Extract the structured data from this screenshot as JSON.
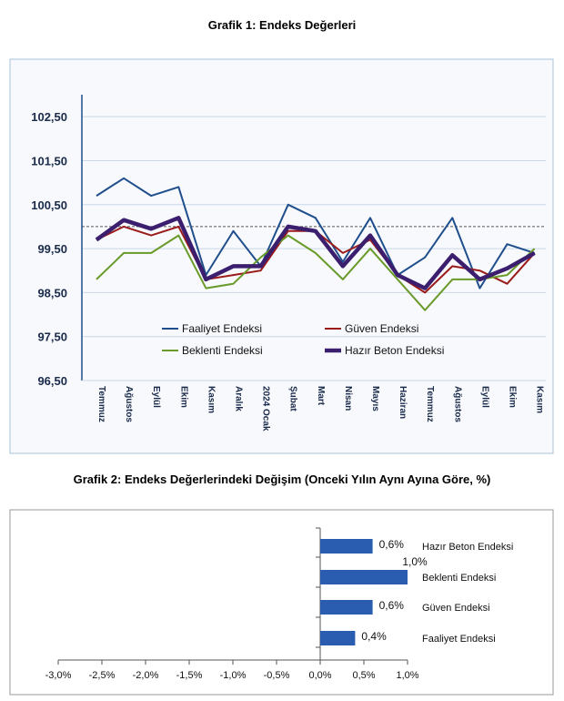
{
  "chart1": {
    "title": "Grafik 1: Endeks Değerleri",
    "colors": {
      "Faaliyet Endeksi": "#1f4e8c",
      "Güven Endeksi": "#9b1b1b",
      "Beklenti Endeksi": "#6a9a2a",
      "Hazır Beton Endeksi": "#3b1f6e",
      "panel_bg": "#f7f9fc",
      "panel_border": "#aac4dc",
      "grid": "#c8d8e8",
      "axis": "#1f4e8c"
    }
  },
  "chart2": {
    "title": "Grafik 2: Endeks Değerlerindeki Değişim (Onceki Yılın Aynı Ayına Göre, %)",
    "bar_color": "#2a5db0"
  },
  "chart_data": [
    {
      "type": "line",
      "title": "Grafik 1: Endeks Değerleri",
      "categories": [
        "Temmuz",
        "Ağustos",
        "Eylül",
        "Ekim",
        "Kasım",
        "Aralık",
        "2024 Ocak",
        "Şubat",
        "Mart",
        "Nisan",
        "Mayıs",
        "Haziran",
        "Temmuz",
        "Ağustos",
        "Eylül",
        "Ekim",
        "Kasım"
      ],
      "ylim": [
        96.5,
        103.0
      ],
      "yticks": [
        "96,50",
        "97,50",
        "98,50",
        "99,50",
        "100,50",
        "101,50",
        "102,50"
      ],
      "ytick_values": [
        96.5,
        97.5,
        98.5,
        99.5,
        100.5,
        101.5,
        102.5
      ],
      "reference_line": 100,
      "grid": true,
      "legend_position": "inside-bottom",
      "series": [
        {
          "name": "Faaliyet Endeksi",
          "values": [
            100.7,
            101.1,
            100.7,
            100.9,
            98.9,
            99.9,
            99.1,
            100.5,
            100.2,
            99.2,
            100.2,
            98.9,
            99.3,
            100.2,
            98.6,
            99.6,
            99.4
          ]
        },
        {
          "name": "Güven Endeksi",
          "values": [
            99.7,
            100.0,
            99.8,
            100.0,
            98.8,
            98.9,
            99.0,
            99.9,
            99.9,
            99.4,
            99.7,
            98.9,
            98.5,
            99.1,
            99.0,
            98.7,
            99.4
          ]
        },
        {
          "name": "Beklenti Endeksi",
          "values": [
            98.8,
            99.4,
            99.4,
            99.8,
            98.6,
            98.7,
            99.3,
            99.8,
            99.4,
            98.8,
            99.5,
            98.8,
            98.1,
            98.8,
            98.8,
            98.9,
            99.5
          ]
        },
        {
          "name": "Hazır Beton Endeksi",
          "values": [
            99.7,
            100.15,
            99.95,
            100.2,
            98.8,
            99.1,
            99.1,
            100.0,
            99.9,
            99.1,
            99.8,
            98.9,
            98.6,
            99.35,
            98.8,
            99.05,
            99.4
          ]
        }
      ]
    },
    {
      "type": "bar",
      "orientation": "horizontal",
      "title": "Grafik 2: Endeks Değerlerindeki Değişim (Onceki Yılın Aynı Ayına Göre, %)",
      "categories": [
        "Hazır Beton Endeksi",
        "Beklenti Endeksi",
        "Güven Endeksi",
        "Faaliyet Endeksi"
      ],
      "values": [
        0.6,
        1.0,
        0.6,
        0.4
      ],
      "value_labels": [
        "0,6%",
        "1,0%",
        "0,6%",
        "0,4%"
      ],
      "xlim": [
        -3.0,
        1.0
      ],
      "xticks": [
        "-3,0%",
        "-2,5%",
        "-2,0%",
        "-1,5%",
        "-1,0%",
        "-0,5%",
        "0,0%",
        "0,5%",
        "1,0%"
      ],
      "xtick_values": [
        -3.0,
        -2.5,
        -2.0,
        -1.5,
        -1.0,
        -0.5,
        0.0,
        0.5,
        1.0
      ]
    }
  ]
}
